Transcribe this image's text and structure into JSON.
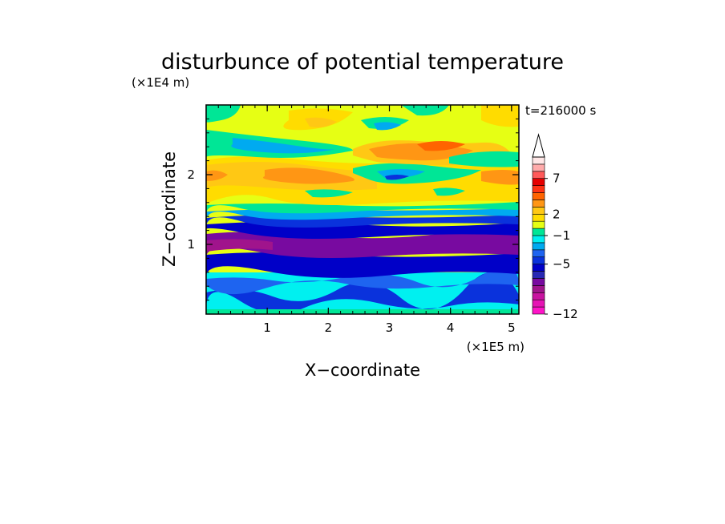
{
  "chart_data": {
    "type": "heatmap",
    "title": "disturbunce of potential temperature",
    "time_label": "t=216000 s",
    "xlabel": "X−coordinate",
    "ylabel": "Z−coordinate",
    "x_scale_label": "(×1E5 m)",
    "y_scale_label": "(×1E4 m)",
    "x_ticks": [
      {
        "value": 1,
        "label": "1"
      },
      {
        "value": 2,
        "label": "2"
      },
      {
        "value": 3,
        "label": "3"
      },
      {
        "value": 4,
        "label": "4"
      },
      {
        "value": 5,
        "label": "5"
      }
    ],
    "y_ticks": [
      {
        "value": 1,
        "label": "1"
      },
      {
        "value": 2,
        "label": "2"
      }
    ],
    "xlim": [
      0,
      5.12
    ],
    "ylim": [
      0,
      3.0
    ],
    "colorbar": {
      "levels": [
        -12,
        -11,
        -10,
        -9,
        -8,
        -7,
        -6,
        -5,
        -4,
        -3,
        -2,
        -1,
        0,
        1,
        2,
        3,
        4,
        5,
        6,
        7,
        8,
        9
      ],
      "colors": [
        "#ff14c8",
        "#e614b4",
        "#c814a0",
        "#a0148c",
        "#780aa0",
        "#2828b4",
        "#0000c8",
        "#0a32dc",
        "#1e64f0",
        "#00aaf0",
        "#00f0f0",
        "#00e696",
        "#e6ff14",
        "#ffdc00",
        "#ffc814",
        "#ff9614",
        "#ff6400",
        "#ff3214",
        "#e60000",
        "#ff5a5a",
        "#ffaaaa",
        "#ffe6e6"
      ],
      "tick_labels": [
        {
          "value": 7,
          "label": "7"
        },
        {
          "value": 2,
          "label": "2"
        },
        {
          "value": -1,
          "label": "−1"
        },
        {
          "value": -5,
          "label": "−5"
        },
        {
          "value": -12,
          "label": "−12"
        }
      ]
    }
  }
}
